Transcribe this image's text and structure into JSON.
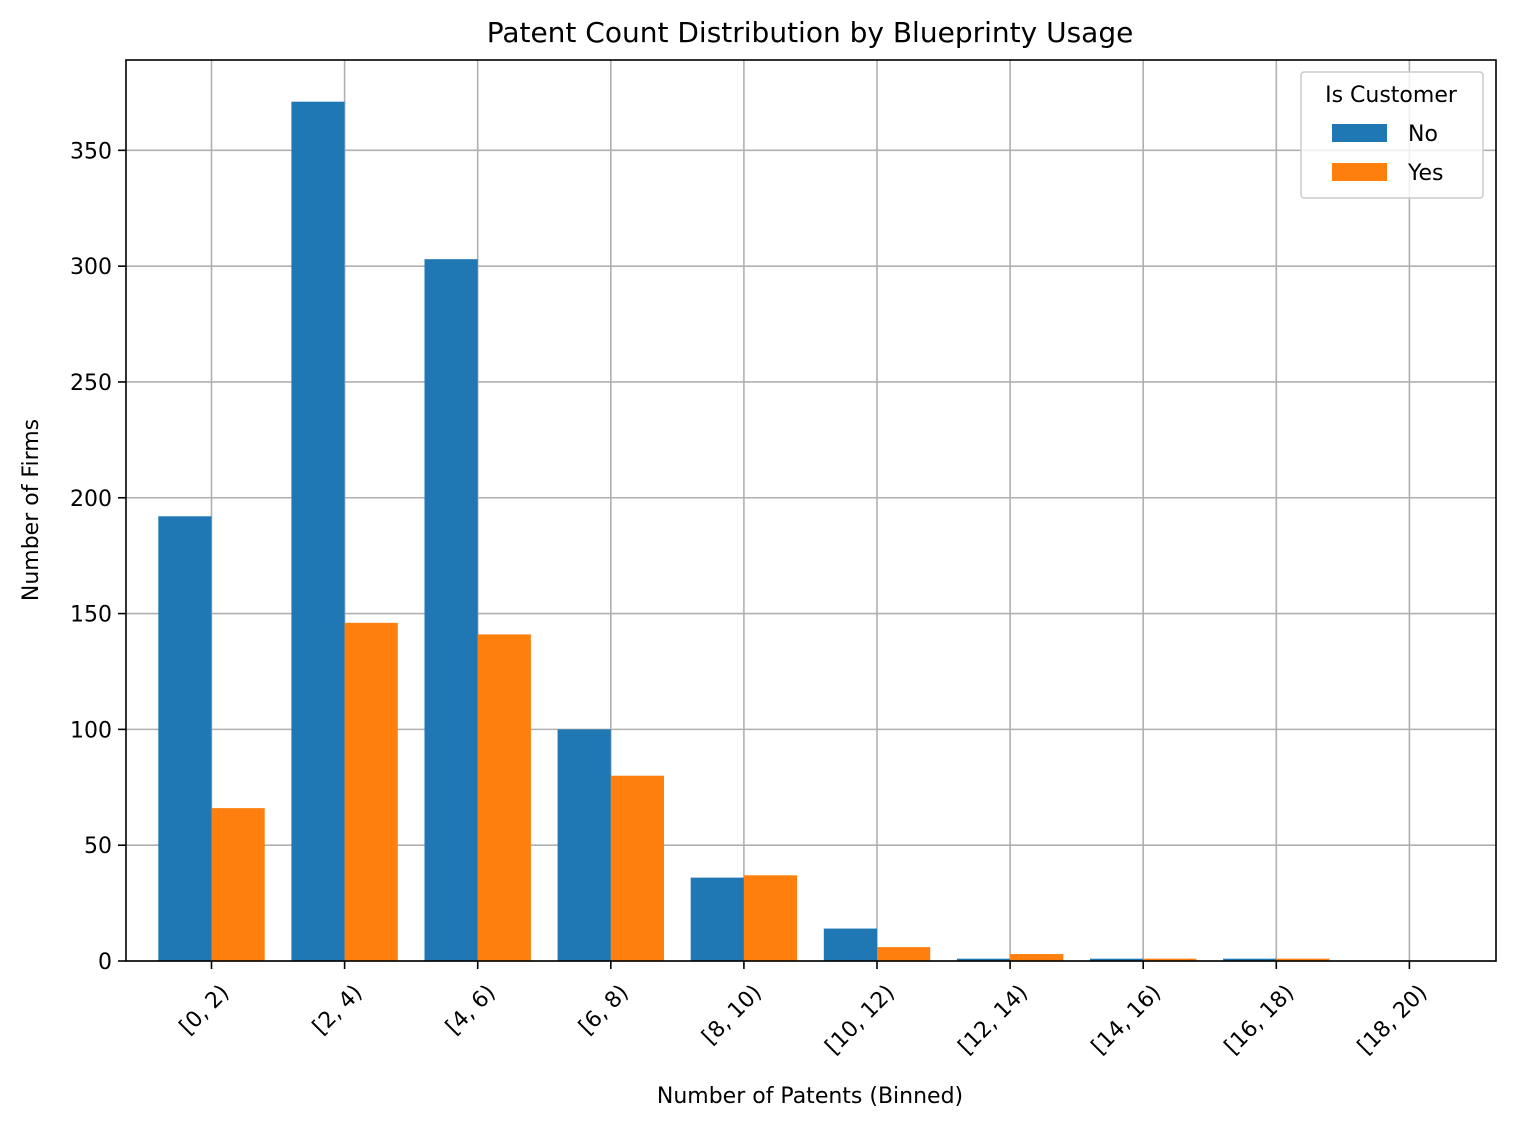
{
  "chart_data": {
    "type": "bar",
    "title": "Patent Count Distribution by Blueprinty Usage",
    "xlabel": "Number of Patents (Binned)",
    "ylabel": "Number of Firms",
    "categories": [
      "[0, 2)",
      "[2, 4)",
      "[4, 6)",
      "[6, 8)",
      "[8, 10)",
      "[10, 12)",
      "[12, 14)",
      "[14, 16)",
      "[16, 18)",
      "[18, 20)"
    ],
    "series": [
      {
        "name": "No",
        "color": "#1f77b4",
        "values": [
          192,
          371,
          303,
          100,
          36,
          14,
          1,
          1,
          1,
          0
        ]
      },
      {
        "name": "Yes",
        "color": "#ff7f0e",
        "values": [
          66,
          146,
          141,
          80,
          37,
          6,
          3,
          1,
          1,
          0
        ]
      }
    ],
    "ylim": [
      0,
      389
    ],
    "yticks": [
      0,
      50,
      100,
      150,
      200,
      250,
      300,
      350
    ],
    "grid": true,
    "legend": {
      "title": "Is Customer",
      "position": "top-right"
    }
  }
}
